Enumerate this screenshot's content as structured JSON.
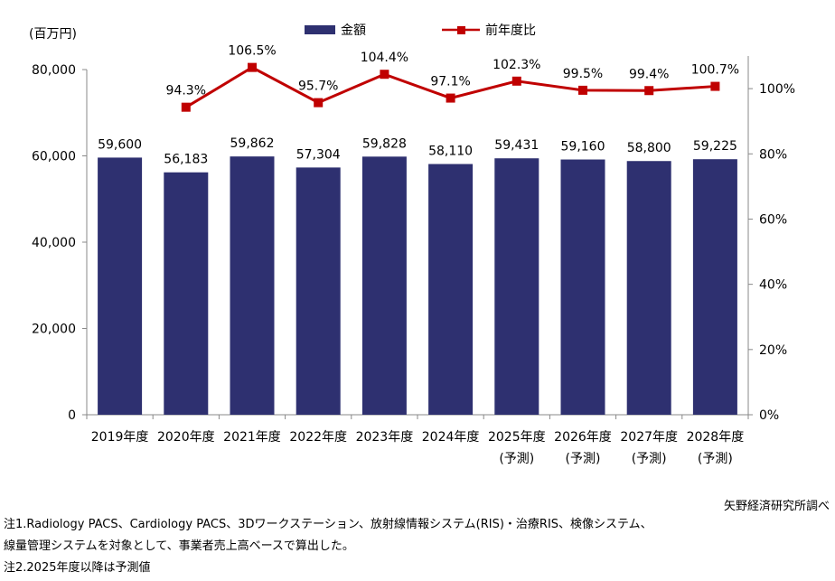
{
  "chart_data": {
    "type": "bar+line",
    "title": "",
    "unit_label": "(百万円)",
    "categories": [
      [
        "2019年度"
      ],
      [
        "2020年度"
      ],
      [
        "2021年度"
      ],
      [
        "2022年度"
      ],
      [
        "2023年度"
      ],
      [
        "2024年度"
      ],
      [
        "2025年度",
        "(予測)"
      ],
      [
        "2026年度",
        "(予測)"
      ],
      [
        "2027年度",
        "(予測)"
      ],
      [
        "2028年度",
        "(予測)"
      ]
    ],
    "series": [
      {
        "name": "金額",
        "type": "bar",
        "axis": "left",
        "color": "#2e3070",
        "values": [
          59600,
          56183,
          59862,
          57304,
          59828,
          58110,
          59431,
          59160,
          58800,
          59225
        ],
        "labels": [
          "59,600",
          "56,183",
          "59,862",
          "57,304",
          "59,828",
          "58,110",
          "59,431",
          "59,160",
          "58,800",
          "59,225"
        ]
      },
      {
        "name": "前年度比",
        "type": "line",
        "axis": "right",
        "color": "#c00000",
        "values": [
          null,
          94.3,
          106.5,
          95.7,
          104.4,
          97.1,
          102.3,
          99.5,
          99.4,
          100.7
        ],
        "labels": [
          "",
          "94.3%",
          "106.5%",
          "95.7%",
          "104.4%",
          "97.1%",
          "102.3%",
          "99.5%",
          "99.4%",
          "100.7%"
        ]
      }
    ],
    "y_left": {
      "min": 0,
      "max": 80000,
      "ticks": [
        0,
        20000,
        40000,
        60000,
        80000
      ],
      "tick_labels": [
        "0",
        "20,000",
        "40,000",
        "60,000",
        "80,000"
      ]
    },
    "y_right": {
      "min": 0,
      "max": 110,
      "ticks": [
        0,
        20,
        40,
        60,
        80,
        100
      ],
      "tick_labels": [
        "0%",
        "20%",
        "40%",
        "60%",
        "80%",
        "100%"
      ]
    },
    "grid": false,
    "legend_position": "top-center"
  },
  "source": "矢野経済研究所調べ",
  "notes": [
    "注1.Radiology PACS、Cardiology PACS、3Dワークステーション、放射線情報システム(RIS)・治療RIS、検像システム、",
    "線量管理システムを対象として、事業者売上高ベースで算出した。",
    "注2.2025年度以降は予測値"
  ]
}
